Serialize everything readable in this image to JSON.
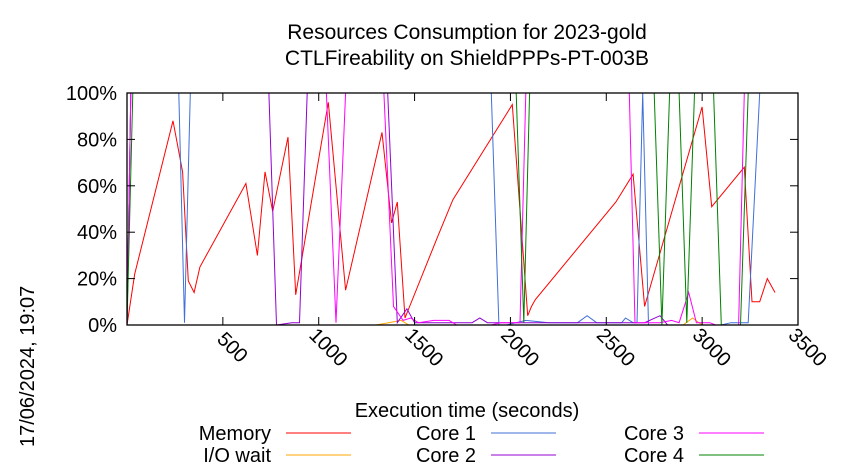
{
  "side_text": "17/06/2024, 19:07",
  "chart_data": {
    "type": "line",
    "title": "Resources Consumption for 2023-gold",
    "subtitle": "CTLFireability on ShieldPPPs-PT-003B",
    "xlabel": "Execution time (seconds)",
    "ylabel": "",
    "xlim": [
      0,
      3500
    ],
    "ylim": [
      0,
      100
    ],
    "x_ticks": [
      500,
      1000,
      1500,
      2000,
      2500,
      3000,
      3500
    ],
    "y_ticks": [
      0,
      20,
      40,
      60,
      80,
      100
    ],
    "y_tick_labels": [
      "0%",
      "20%",
      "40%",
      "60%",
      "80%",
      "100%"
    ],
    "grid": false,
    "legend_position": "bottom",
    "series": [
      {
        "name": "Memory",
        "color": "#ff0000",
        "points": [
          [
            0,
            0
          ],
          [
            40,
            22
          ],
          [
            240,
            88
          ],
          [
            290,
            66
          ],
          [
            320,
            19
          ],
          [
            350,
            14
          ],
          [
            380,
            25
          ],
          [
            620,
            61
          ],
          [
            680,
            30
          ],
          [
            720,
            66
          ],
          [
            760,
            49
          ],
          [
            840,
            81
          ],
          [
            880,
            13
          ],
          [
            1050,
            96
          ],
          [
            1140,
            15
          ],
          [
            1330,
            83
          ],
          [
            1380,
            44
          ],
          [
            1410,
            53
          ],
          [
            1450,
            3
          ],
          [
            1620,
            38
          ],
          [
            1700,
            54
          ],
          [
            2010,
            95
          ],
          [
            2090,
            4
          ],
          [
            2110,
            8
          ],
          [
            2130,
            11
          ],
          [
            2550,
            53
          ],
          [
            2640,
            65
          ],
          [
            2700,
            8
          ],
          [
            3000,
            94
          ],
          [
            3050,
            51
          ],
          [
            3220,
            68
          ],
          [
            3260,
            10
          ],
          [
            3300,
            10
          ],
          [
            3340,
            20
          ],
          [
            3380,
            14
          ]
        ]
      },
      {
        "name": "I/O wait",
        "color": "#ffa500",
        "points": [
          [
            0,
            0
          ],
          [
            1300,
            0
          ],
          [
            1430,
            2
          ],
          [
            1470,
            0
          ],
          [
            2900,
            0
          ],
          [
            2950,
            3
          ],
          [
            3000,
            0
          ],
          [
            3400,
            0
          ]
        ]
      },
      {
        "name": "Core 1",
        "color": "#3f6fd7",
        "points": [
          [
            0,
            0
          ],
          [
            20,
            100
          ],
          [
            270,
            100
          ],
          [
            300,
            1
          ],
          [
            330,
            100
          ],
          [
            1900,
            100
          ],
          [
            1940,
            0
          ],
          [
            1980,
            0
          ],
          [
            2080,
            2
          ],
          [
            2200,
            1
          ],
          [
            2350,
            1
          ],
          [
            2400,
            4
          ],
          [
            2450,
            1
          ],
          [
            2580,
            1
          ],
          [
            2600,
            3
          ],
          [
            2640,
            1
          ],
          [
            2660,
            1
          ],
          [
            2690,
            100
          ],
          [
            2720,
            0
          ],
          [
            3100,
            0
          ],
          [
            3150,
            1
          ],
          [
            3240,
            1
          ],
          [
            3300,
            100
          ],
          [
            3400,
            100
          ]
        ]
      },
      {
        "name": "Core 2",
        "color": "#9400d3",
        "points": [
          [
            0,
            0
          ],
          [
            20,
            100
          ],
          [
            740,
            100
          ],
          [
            780,
            0
          ],
          [
            860,
            1
          ],
          [
            900,
            1
          ],
          [
            940,
            100
          ],
          [
            1360,
            100
          ],
          [
            1410,
            1
          ],
          [
            1460,
            7
          ],
          [
            1500,
            1
          ],
          [
            1800,
            1
          ],
          [
            1840,
            3
          ],
          [
            1880,
            1
          ],
          [
            2050,
            1
          ],
          [
            2100,
            1
          ],
          [
            2660,
            1
          ],
          [
            2700,
            1
          ],
          [
            2780,
            4
          ],
          [
            2820,
            0
          ],
          [
            3400,
            0
          ]
        ]
      },
      {
        "name": "Core 3",
        "color": "#ff00ff",
        "points": [
          [
            0,
            0
          ],
          [
            20,
            100
          ],
          [
            1040,
            100
          ],
          [
            1090,
            1
          ],
          [
            1140,
            100
          ],
          [
            1340,
            100
          ],
          [
            1390,
            8
          ],
          [
            1440,
            2
          ],
          [
            1480,
            3
          ],
          [
            1520,
            1
          ],
          [
            1600,
            2
          ],
          [
            1680,
            2
          ],
          [
            1720,
            0
          ],
          [
            1900,
            0
          ],
          [
            1950,
            1
          ],
          [
            2050,
            1
          ],
          [
            2080,
            100
          ],
          [
            2620,
            100
          ],
          [
            2650,
            1
          ],
          [
            2700,
            1
          ],
          [
            2780,
            1
          ],
          [
            2840,
            2
          ],
          [
            2880,
            1
          ],
          [
            2930,
            14
          ],
          [
            2970,
            1
          ],
          [
            3040,
            1
          ],
          [
            3070,
            0
          ],
          [
            3190,
            0
          ],
          [
            3220,
            100
          ],
          [
            3400,
            100
          ]
        ]
      },
      {
        "name": "Core 4",
        "color": "#008000",
        "points": [
          [
            0,
            0
          ],
          [
            30,
            100
          ],
          [
            2030,
            100
          ],
          [
            2070,
            1
          ],
          [
            2100,
            100
          ],
          [
            2750,
            100
          ],
          [
            2790,
            0
          ],
          [
            2830,
            100
          ],
          [
            2880,
            100
          ],
          [
            2920,
            1
          ],
          [
            2960,
            100
          ],
          [
            3060,
            100
          ],
          [
            3100,
            0
          ],
          [
            3200,
            0
          ],
          [
            3240,
            100
          ],
          [
            3400,
            100
          ]
        ]
      }
    ]
  }
}
